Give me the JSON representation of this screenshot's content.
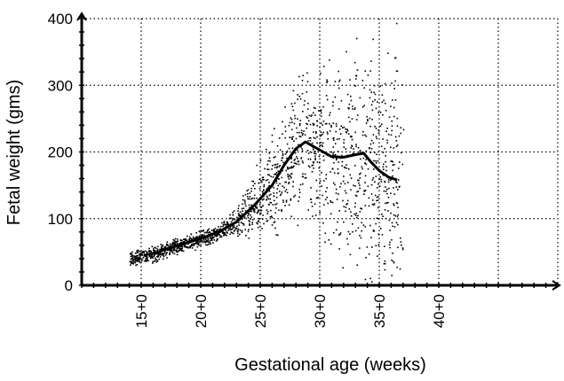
{
  "chart_data": {
    "type": "scatter",
    "title": "",
    "xlabel": "Gestational age (weeks)",
    "ylabel": "Fetal weight (gms)",
    "xlim": [
      10,
      50
    ],
    "ylim": [
      0,
      400
    ],
    "grid": true,
    "x_ticks": [
      {
        "value": 15,
        "label": "15+0"
      },
      {
        "value": 20,
        "label": "20+0"
      },
      {
        "value": 25,
        "label": "25+0"
      },
      {
        "value": 30,
        "label": "30+0"
      },
      {
        "value": 35,
        "label": "35+0"
      },
      {
        "value": 40,
        "label": "40+0"
      }
    ],
    "x_gridlines": [
      10,
      15,
      20,
      25,
      30,
      35,
      40,
      45,
      50
    ],
    "y_ticks": [
      {
        "value": 0,
        "label": "0"
      },
      {
        "value": 100,
        "label": "100"
      },
      {
        "value": 200,
        "label": "200"
      },
      {
        "value": 300,
        "label": "300"
      },
      {
        "value": 400,
        "label": "400"
      }
    ],
    "y_gridlines": [
      0,
      100,
      200,
      300,
      400
    ],
    "mean_line": {
      "x": [
        16.0,
        17.0,
        18.5,
        20.0,
        21.5,
        23.0,
        24.5,
        26.0,
        27.0,
        28.0,
        28.8,
        29.5,
        30.3,
        31.0,
        32.0,
        33.0,
        33.7,
        34.3,
        35.0,
        35.8,
        36.5
      ],
      "y": [
        47,
        54,
        62,
        70,
        80,
        95,
        120,
        150,
        180,
        205,
        215,
        208,
        200,
        193,
        192,
        196,
        198,
        185,
        172,
        162,
        158
      ]
    },
    "scatter_density": {
      "x_range": [
        14,
        37
      ],
      "description": "dense cloud of individual fetal weight measurements"
    }
  }
}
